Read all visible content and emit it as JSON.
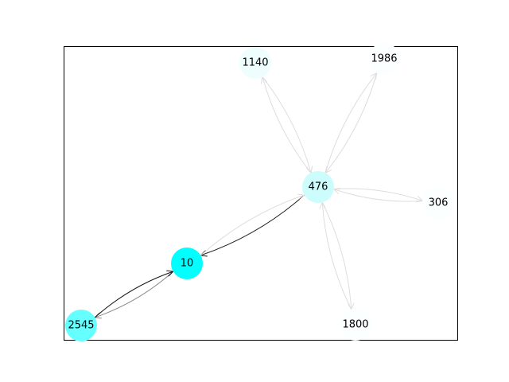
{
  "graph": {
    "nodes": [
      {
        "id": "1140",
        "label": "1140",
        "fill": "#eefefe"
      },
      {
        "id": "1986",
        "label": "1986",
        "fill": "#fbffff"
      },
      {
        "id": "476",
        "label": "476",
        "fill": "#ccfcfc"
      },
      {
        "id": "306",
        "label": "306",
        "fill": "#fbffff"
      },
      {
        "id": "10",
        "label": "10",
        "fill": "#00ffff"
      },
      {
        "id": "1800",
        "label": "1800",
        "fill": "#fbffff"
      },
      {
        "id": "2545",
        "label": "2545",
        "fill": "#66ffff"
      }
    ],
    "edges": [
      {
        "source": "476",
        "target": "1140",
        "color": "#dddddd"
      },
      {
        "source": "1140",
        "target": "476",
        "color": "#dddddd"
      },
      {
        "source": "476",
        "target": "1986",
        "color": "#dddddd"
      },
      {
        "source": "1986",
        "target": "476",
        "color": "#dddddd"
      },
      {
        "source": "476",
        "target": "306",
        "color": "#dddddd"
      },
      {
        "source": "306",
        "target": "476",
        "color": "#dddddd"
      },
      {
        "source": "476",
        "target": "1800",
        "color": "#dddddd"
      },
      {
        "source": "1800",
        "target": "476",
        "color": "#dddddd"
      },
      {
        "source": "476",
        "target": "10",
        "color": "#222222"
      },
      {
        "source": "10",
        "target": "476",
        "color": "#dddddd"
      },
      {
        "source": "10",
        "target": "2545",
        "color": "#888888"
      },
      {
        "source": "2545",
        "target": "10",
        "color": "#111111"
      }
    ]
  }
}
